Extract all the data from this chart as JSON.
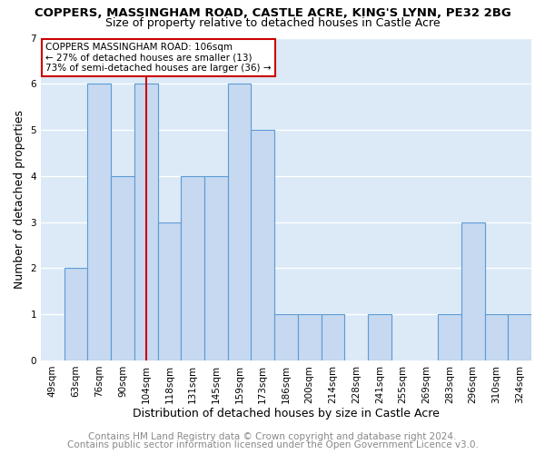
{
  "title": "COPPERS, MASSINGHAM ROAD, CASTLE ACRE, KING'S LYNN, PE32 2BG",
  "subtitle": "Size of property relative to detached houses in Castle Acre",
  "xlabel": "Distribution of detached houses by size in Castle Acre",
  "ylabel": "Number of detached properties",
  "bin_labels": [
    "49sqm",
    "63sqm",
    "76sqm",
    "90sqm",
    "104sqm",
    "118sqm",
    "131sqm",
    "145sqm",
    "159sqm",
    "173sqm",
    "186sqm",
    "200sqm",
    "214sqm",
    "228sqm",
    "241sqm",
    "255sqm",
    "269sqm",
    "283sqm",
    "296sqm",
    "310sqm",
    "324sqm"
  ],
  "bar_heights": [
    0,
    2,
    6,
    4,
    6,
    3,
    4,
    4,
    6,
    5,
    1,
    1,
    1,
    0,
    1,
    0,
    0,
    1,
    3,
    1,
    1
  ],
  "bar_color": "#c6d9f0",
  "bar_edge_color": "#5b9bd5",
  "red_line_index": 4,
  "annotation_line1": "COPPERS MASSINGHAM ROAD: 106sqm",
  "annotation_line2": "← 27% of detached houses are smaller (13)",
  "annotation_line3": "73% of semi-detached houses are larger (36) →",
  "annotation_box_color": "#ffffff",
  "annotation_box_edge": "#cc0000",
  "ylim": [
    0,
    7
  ],
  "yticks": [
    0,
    1,
    2,
    3,
    4,
    5,
    6,
    7
  ],
  "footer1": "Contains HM Land Registry data © Crown copyright and database right 2024.",
  "footer2": "Contains public sector information licensed under the Open Government Licence v3.0.",
  "bg_color": "#ffffff",
  "plot_bg_color": "#dce9f7",
  "grid_color": "#ffffff",
  "title_fontsize": 9.5,
  "subtitle_fontsize": 9,
  "axis_label_fontsize": 9,
  "tick_fontsize": 7.5,
  "footer_fontsize": 7.5
}
